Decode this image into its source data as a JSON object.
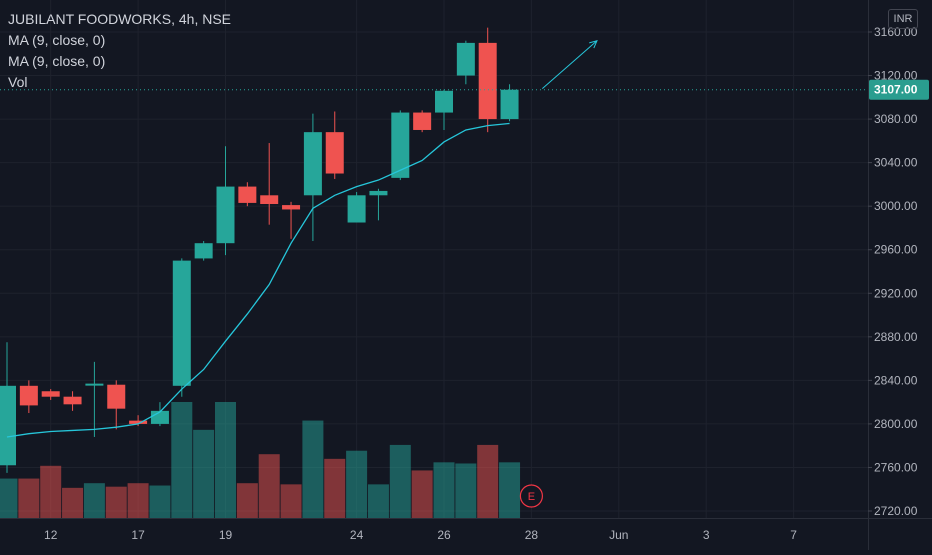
{
  "legend": {
    "symbol": "JUBILANT FOODWORKS, 4h, NSE",
    "ma1": "MA (9, close, 0)",
    "ma2": "MA (9, close, 0)",
    "vol": "Vol"
  },
  "currency": "INR",
  "colors": {
    "background": "#131722",
    "up": "#26a69a",
    "down": "#ef5350",
    "ma": "#26c6da",
    "axis_text": "#b2b5be",
    "price_tag": "#2a9d8f"
  },
  "chart_data": {
    "type": "candlestick",
    "ylim": [
      2715,
      3175
    ],
    "y_ticks": [
      2720,
      2760,
      2800,
      2840,
      2880,
      2920,
      2960,
      3000,
      3040,
      3080,
      3120,
      3160
    ],
    "y_tick_labels": [
      "2720.00",
      "2760.00",
      "2800.00",
      "2840.00",
      "2880.00",
      "2920.00",
      "2960.00",
      "3000.00",
      "3040.00",
      "3080.00",
      "3120.00",
      "3160.00"
    ],
    "x_tick_labels": [
      {
        "label": "12",
        "bar": 2
      },
      {
        "label": "17",
        "bar": 6
      },
      {
        "label": "19",
        "bar": 10
      },
      {
        "label": "24",
        "bar": 16
      },
      {
        "label": "26",
        "bar": 20
      },
      {
        "label": "28",
        "bar": 24
      },
      {
        "label": "Jun",
        "bar": 28
      },
      {
        "label": "3",
        "bar": 32
      },
      {
        "label": "7",
        "bar": 36
      }
    ],
    "last_price": "3107.00",
    "last_price_value": 3107,
    "candles": [
      {
        "o": 2762,
        "h": 2875,
        "l": 2755,
        "c": 2835
      },
      {
        "o": 2835,
        "h": 2840,
        "l": 2810,
        "c": 2817
      },
      {
        "o": 2830,
        "h": 2832,
        "l": 2822,
        "c": 2825
      },
      {
        "o": 2825,
        "h": 2830,
        "l": 2812,
        "c": 2818
      },
      {
        "o": 2836,
        "h": 2857,
        "l": 2788,
        "c": 2837
      },
      {
        "o": 2836,
        "h": 2840,
        "l": 2795,
        "c": 2814
      },
      {
        "o": 2803,
        "h": 2808,
        "l": 2798,
        "c": 2800
      },
      {
        "o": 2800,
        "h": 2820,
        "l": 2798,
        "c": 2812
      },
      {
        "o": 2835,
        "h": 2952,
        "l": 2825,
        "c": 2950
      },
      {
        "o": 2952,
        "h": 2968,
        "l": 2950,
        "c": 2966
      },
      {
        "o": 2966,
        "h": 3055,
        "l": 2955,
        "c": 3018
      },
      {
        "o": 3018,
        "h": 3022,
        "l": 3000,
        "c": 3003
      },
      {
        "o": 3010,
        "h": 3058,
        "l": 2983,
        "c": 3002
      },
      {
        "o": 3001,
        "h": 3004,
        "l": 2970,
        "c": 2997
      },
      {
        "o": 3010,
        "h": 3085,
        "l": 2968,
        "c": 3068
      },
      {
        "o": 3068,
        "h": 3087,
        "l": 3025,
        "c": 3030
      },
      {
        "o": 2985,
        "h": 3013,
        "l": 2985,
        "c": 3010
      },
      {
        "o": 3010,
        "h": 3016,
        "l": 2987,
        "c": 3014
      },
      {
        "o": 3026,
        "h": 3088,
        "l": 3024,
        "c": 3086
      },
      {
        "o": 3086,
        "h": 3088,
        "l": 3068,
        "c": 3070
      },
      {
        "o": 3086,
        "h": 3107,
        "l": 3070,
        "c": 3106
      },
      {
        "o": 3120,
        "h": 3152,
        "l": 3112,
        "c": 3150
      },
      {
        "o": 3150,
        "h": 3164,
        "l": 3068,
        "c": 3080
      },
      {
        "o": 3080,
        "h": 3112,
        "l": 3078,
        "c": 3107
      }
    ],
    "volume_scale_max": 100,
    "volume": [
      34,
      34,
      45,
      26,
      30,
      27,
      30,
      28,
      100,
      76,
      100,
      30,
      55,
      29,
      84,
      51,
      58,
      29,
      63,
      41,
      48,
      47,
      63,
      48
    ],
    "ma": [
      {
        "bar": 0,
        "v": 2788
      },
      {
        "bar": 1,
        "v": 2791
      },
      {
        "bar": 2,
        "v": 2793
      },
      {
        "bar": 3,
        "v": 2794
      },
      {
        "bar": 4,
        "v": 2795
      },
      {
        "bar": 5,
        "v": 2797
      },
      {
        "bar": 6,
        "v": 2800
      },
      {
        "bar": 7,
        "v": 2811
      },
      {
        "bar": 8,
        "v": 2832
      },
      {
        "bar": 9,
        "v": 2850
      },
      {
        "bar": 10,
        "v": 2876
      },
      {
        "bar": 11,
        "v": 2901
      },
      {
        "bar": 12,
        "v": 2928
      },
      {
        "bar": 13,
        "v": 2966
      },
      {
        "bar": 14,
        "v": 2998
      },
      {
        "bar": 15,
        "v": 3010
      },
      {
        "bar": 16,
        "v": 3018
      },
      {
        "bar": 17,
        "v": 3024
      },
      {
        "bar": 18,
        "v": 3033
      },
      {
        "bar": 19,
        "v": 3042
      },
      {
        "bar": 20,
        "v": 3059
      },
      {
        "bar": 21,
        "v": 3070
      },
      {
        "bar": 22,
        "v": 3074
      },
      {
        "bar": 23,
        "v": 3076
      }
    ],
    "arrow": {
      "from": {
        "bar": 24.5,
        "v": 3108
      },
      "to": {
        "bar": 27,
        "v": 3152
      }
    },
    "event_marker": {
      "label": "E",
      "bar": 24
    }
  }
}
